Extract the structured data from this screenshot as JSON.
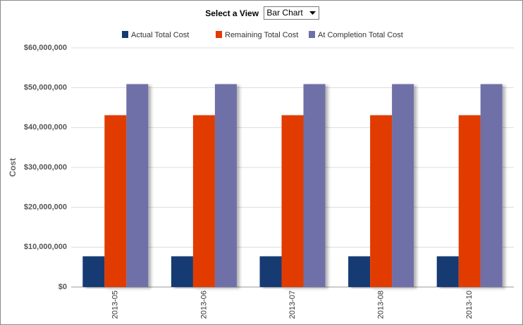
{
  "view_selector": {
    "label": "Select a View",
    "value": "Bar Chart"
  },
  "chart_data": {
    "type": "bar",
    "y_label": "Cost",
    "categories": [
      "2013-05",
      "2013-06",
      "2013-07",
      "2013-08",
      "2013-10"
    ],
    "series": [
      {
        "name": "Actual Total Cost",
        "color": "#123a73",
        "values": [
          7700000,
          7700000,
          7700000,
          7700000,
          7700000
        ]
      },
      {
        "name": "Remaining Total Cost",
        "color": "#e23b00",
        "values": [
          43100000,
          43100000,
          43100000,
          43100000,
          43100000
        ]
      },
      {
        "name": "At Completion Total Cost",
        "color": "#6f6fa8",
        "values": [
          50900000,
          50900000,
          50900000,
          50900000,
          50900000
        ]
      }
    ],
    "ylim": [
      0,
      60000000
    ],
    "yticks": [
      {
        "value": 0,
        "label": "$0"
      },
      {
        "value": 10000000,
        "label": "$10,000,000"
      },
      {
        "value": 20000000,
        "label": "$20,000,000"
      },
      {
        "value": 30000000,
        "label": "$30,000,000"
      },
      {
        "value": 40000000,
        "label": "$40,000,000"
      },
      {
        "value": 50000000,
        "label": "$50,000,000"
      },
      {
        "value": 60000000,
        "label": "$60,000,000"
      }
    ],
    "grid": true,
    "legend": "top"
  }
}
